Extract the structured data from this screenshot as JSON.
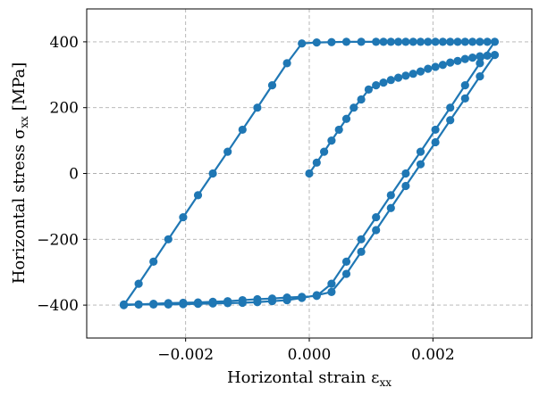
{
  "chart_data": {
    "type": "line",
    "title": "",
    "xlabel": "Horizontal strain ε",
    "xlabel_sub": "xx",
    "ylabel": "Horizontal stress σ",
    "ylabel_sub": "xx",
    "ylabel_unit": "[MPa]",
    "xlim": [
      -0.0036,
      0.0036
    ],
    "ylim": [
      -500,
      500
    ],
    "xticks": [
      -0.002,
      0.0,
      0.002
    ],
    "xtick_labels": [
      "−0.002",
      "0.000",
      "0.002"
    ],
    "yticks": [
      -400,
      -200,
      0,
      200,
      400
    ],
    "ytick_labels": [
      "−400",
      "−200",
      "0",
      "200",
      "400"
    ],
    "grid": true,
    "legend": "none",
    "color": "#1f77b4",
    "series": [
      {
        "x": [
          0.0,
          0.00012,
          0.00024,
          0.00036,
          0.00048,
          0.0006,
          0.00072,
          0.00084,
          0.00096,
          0.00108,
          0.0012,
          0.00132,
          0.00144,
          0.00156,
          0.00168,
          0.0018,
          0.00192,
          0.00204,
          0.00216,
          0.00228,
          0.0024,
          0.00252,
          0.00264,
          0.00276,
          0.00288,
          0.003,
          0.00276,
          0.00252,
          0.00228,
          0.00204,
          0.0018,
          0.00156,
          0.00132,
          0.00108,
          0.00084,
          0.0006,
          0.00036,
          0.00012,
          -0.00012,
          -0.00036,
          -0.0006,
          -0.00084,
          -0.00108,
          -0.00132,
          -0.00156,
          -0.0018,
          -0.00204,
          -0.00228,
          -0.00252,
          -0.00276,
          -0.003,
          -0.00276,
          -0.00252,
          -0.00228,
          -0.00204,
          -0.0018,
          -0.00156,
          -0.00132,
          -0.00108,
          -0.00084,
          -0.0006,
          -0.00036,
          -0.00012,
          0.00012,
          0.00036,
          0.0006,
          0.00084,
          0.00108,
          0.0012,
          0.00132,
          0.00144,
          0.00156,
          0.00168,
          0.0018,
          0.00192,
          0.00204,
          0.00216,
          0.00228,
          0.0024,
          0.00252,
          0.00264,
          0.00276,
          0.00288,
          0.003,
          0.00276,
          0.00252,
          0.00228,
          0.00204,
          0.0018,
          0.00156,
          0.00132,
          0.00108,
          0.00084,
          0.0006,
          0.00036,
          0.00012,
          -0.00012,
          -0.00036,
          -0.0006,
          -0.00084,
          -0.00108,
          -0.00132,
          -0.00156,
          -0.0018,
          -0.00204,
          -0.00228,
          -0.00252,
          -0.00276,
          -0.003
        ],
        "y": [
          0,
          33,
          66,
          100,
          133,
          166,
          200,
          225,
          255,
          268,
          276,
          284,
          291,
          297,
          303,
          310,
          318,
          324,
          330,
          337,
          342,
          348,
          352,
          356,
          358,
          360,
          295,
          228,
          162,
          95,
          28,
          -38,
          -105,
          -172,
          -238,
          -305,
          -360,
          -370,
          -378,
          -385,
          -388,
          -391,
          -393,
          -394,
          -395,
          -396,
          -397,
          -398,
          -398,
          -398,
          -400,
          -335,
          -268,
          -200,
          -133,
          -66,
          0,
          66,
          133,
          200,
          268,
          335,
          395,
          398,
          399,
          400,
          400,
          400,
          400,
          400,
          400,
          400,
          400,
          400,
          400,
          400,
          400,
          400,
          400,
          400,
          400,
          400,
          400,
          400,
          335,
          268,
          200,
          133,
          66,
          0,
          -66,
          -133,
          -200,
          -268,
          -335,
          -372,
          -375,
          -377,
          -380,
          -382,
          -385,
          -388,
          -390,
          -392,
          -393,
          -394,
          -396,
          -398,
          -398
        ]
      }
    ]
  }
}
